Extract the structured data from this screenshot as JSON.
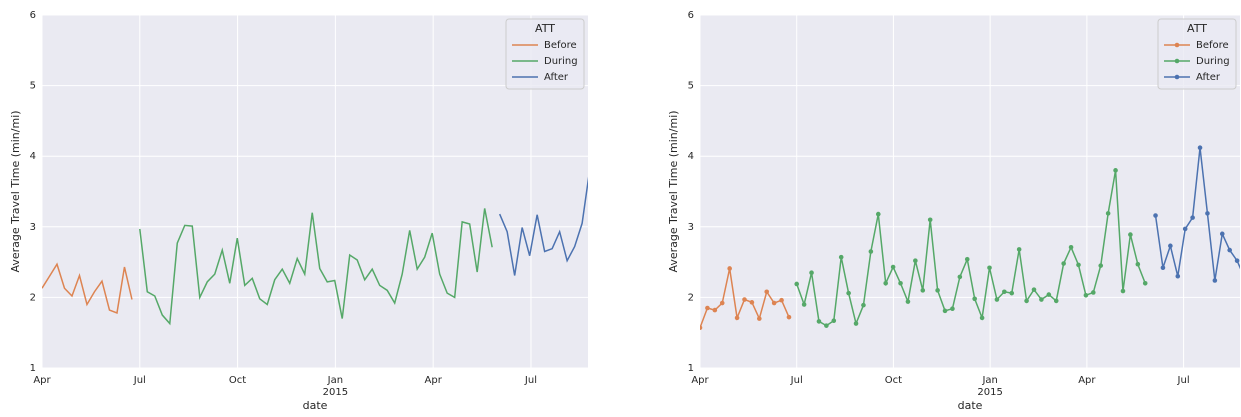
{
  "chart_data": [
    {
      "type": "line",
      "ylabel": "Average Travel Time (min/mi)",
      "xlabel": "date",
      "legend_title": "ATT",
      "legend": "upper right",
      "grid": true,
      "marker": false,
      "xlim": [
        0,
        16.75
      ],
      "ylim": [
        1,
        6
      ],
      "yticks": [
        1,
        2,
        3,
        4,
        5,
        6
      ],
      "xticks": [
        {
          "value": 0,
          "label": "Apr"
        },
        {
          "value": 3,
          "label": "Jul"
        },
        {
          "value": 6,
          "label": "Oct"
        },
        {
          "value": 9,
          "label": "Jan",
          "sublabel": "2015"
        },
        {
          "value": 12,
          "label": "Apr"
        },
        {
          "value": 15,
          "label": "Jul"
        }
      ],
      "series": [
        {
          "name": "Before",
          "color": "#dd8452",
          "x": [
            0,
            0.23,
            0.46,
            0.69,
            0.92,
            1.15,
            1.38,
            1.61,
            1.84,
            2.07,
            2.3,
            2.53,
            2.76
          ],
          "values": [
            2.13,
            2.3,
            2.47,
            2.13,
            2.02,
            2.31,
            1.9,
            2.08,
            2.23,
            1.82,
            1.78,
            2.43,
            1.97
          ]
        },
        {
          "name": "During",
          "color": "#55a868",
          "x": [
            3,
            3.23,
            3.46,
            3.69,
            3.92,
            4.15,
            4.38,
            4.61,
            4.84,
            5.07,
            5.3,
            5.53,
            5.76,
            5.99,
            6.22,
            6.45,
            6.68,
            6.91,
            7.14,
            7.37,
            7.6,
            7.83,
            8.06,
            8.29,
            8.52,
            8.75,
            8.98,
            9.21,
            9.44,
            9.67,
            9.9,
            10.13,
            10.36,
            10.59,
            10.82,
            11.05,
            11.28,
            11.51,
            11.74,
            11.97,
            12.2,
            12.43,
            12.66,
            12.89,
            13.12,
            13.35,
            13.58,
            13.81
          ],
          "values": [
            2.97,
            2.08,
            2.02,
            1.75,
            1.63,
            2.77,
            3.02,
            3.01,
            2.0,
            2.22,
            2.33,
            2.67,
            2.2,
            2.84,
            2.17,
            2.27,
            1.98,
            1.9,
            2.25,
            2.4,
            2.2,
            2.55,
            2.33,
            3.2,
            2.41,
            2.22,
            2.24,
            1.7,
            2.6,
            2.53,
            2.25,
            2.4,
            2.17,
            2.1,
            1.92,
            2.33,
            2.95,
            2.4,
            2.57,
            2.91,
            2.33,
            2.06,
            2.0,
            3.07,
            3.04,
            2.36,
            3.26,
            2.71
          ]
        },
        {
          "name": "After",
          "color": "#4c72b0",
          "x": [
            14.04,
            14.27,
            14.5,
            14.73,
            14.96,
            15.19,
            15.42,
            15.65,
            15.88,
            16.11,
            16.34,
            16.57,
            16.8
          ],
          "values": [
            3.18,
            2.93,
            2.31,
            2.99,
            2.59,
            3.17,
            2.65,
            2.69,
            2.93,
            2.52,
            2.72,
            3.05,
            3.8
          ]
        }
      ]
    },
    {
      "type": "line",
      "ylabel": "Average Travel Time (min/mi)",
      "xlabel": "date",
      "legend_title": "ATT",
      "legend": "upper right",
      "grid": true,
      "marker": true,
      "xlim": [
        0,
        16.75
      ],
      "ylim": [
        1,
        6
      ],
      "yticks": [
        1,
        2,
        3,
        4,
        5,
        6
      ],
      "xticks": [
        {
          "value": 0,
          "label": "Apr"
        },
        {
          "value": 3,
          "label": "Jul"
        },
        {
          "value": 6,
          "label": "Oct"
        },
        {
          "value": 9,
          "label": "Jan",
          "sublabel": "2015"
        },
        {
          "value": 12,
          "label": "Apr"
        },
        {
          "value": 15,
          "label": "Jul"
        }
      ],
      "series": [
        {
          "name": "Before",
          "color": "#dd8452",
          "x": [
            0,
            0.23,
            0.46,
            0.69,
            0.92,
            1.15,
            1.38,
            1.61,
            1.84,
            2.07,
            2.3,
            2.53,
            2.76
          ],
          "values": [
            1.57,
            1.85,
            1.82,
            1.92,
            2.41,
            1.71,
            1.97,
            1.93,
            1.7,
            2.08,
            1.92,
            1.96,
            1.72
          ]
        },
        {
          "name": "During",
          "color": "#55a868",
          "x": [
            3,
            3.23,
            3.46,
            3.69,
            3.92,
            4.15,
            4.38,
            4.61,
            4.84,
            5.07,
            5.3,
            5.53,
            5.76,
            5.99,
            6.22,
            6.45,
            6.68,
            6.91,
            7.14,
            7.37,
            7.6,
            7.83,
            8.06,
            8.29,
            8.52,
            8.75,
            8.98,
            9.21,
            9.44,
            9.67,
            9.9,
            10.13,
            10.36,
            10.59,
            10.82,
            11.05,
            11.28,
            11.51,
            11.74,
            11.97,
            12.2,
            12.43,
            12.66,
            12.89,
            13.12,
            13.35,
            13.58,
            13.81
          ],
          "values": [
            2.19,
            1.9,
            2.35,
            1.66,
            1.6,
            1.67,
            2.57,
            2.06,
            1.63,
            1.89,
            2.65,
            3.18,
            2.2,
            2.43,
            2.2,
            1.94,
            2.52,
            2.1,
            3.1,
            2.1,
            1.81,
            1.84,
            2.29,
            2.54,
            1.98,
            1.71,
            2.42,
            1.97,
            2.08,
            2.06,
            2.68,
            1.95,
            2.11,
            1.97,
            2.04,
            1.95,
            2.48,
            2.71,
            2.46,
            2.03,
            2.07,
            2.45,
            3.19,
            3.8,
            2.09,
            2.89,
            2.47,
            2.2
          ]
        },
        {
          "name": "After",
          "color": "#4c72b0",
          "x": [
            14.13,
            14.36,
            14.59,
            14.82,
            15.05,
            15.28,
            15.51,
            15.74,
            15.97,
            16.2,
            16.43,
            16.66,
            16.89
          ],
          "values": [
            3.16,
            2.42,
            2.73,
            2.3,
            2.97,
            3.13,
            4.12,
            3.19,
            2.24,
            2.9,
            2.67,
            2.52,
            2.28
          ]
        }
      ]
    }
  ]
}
